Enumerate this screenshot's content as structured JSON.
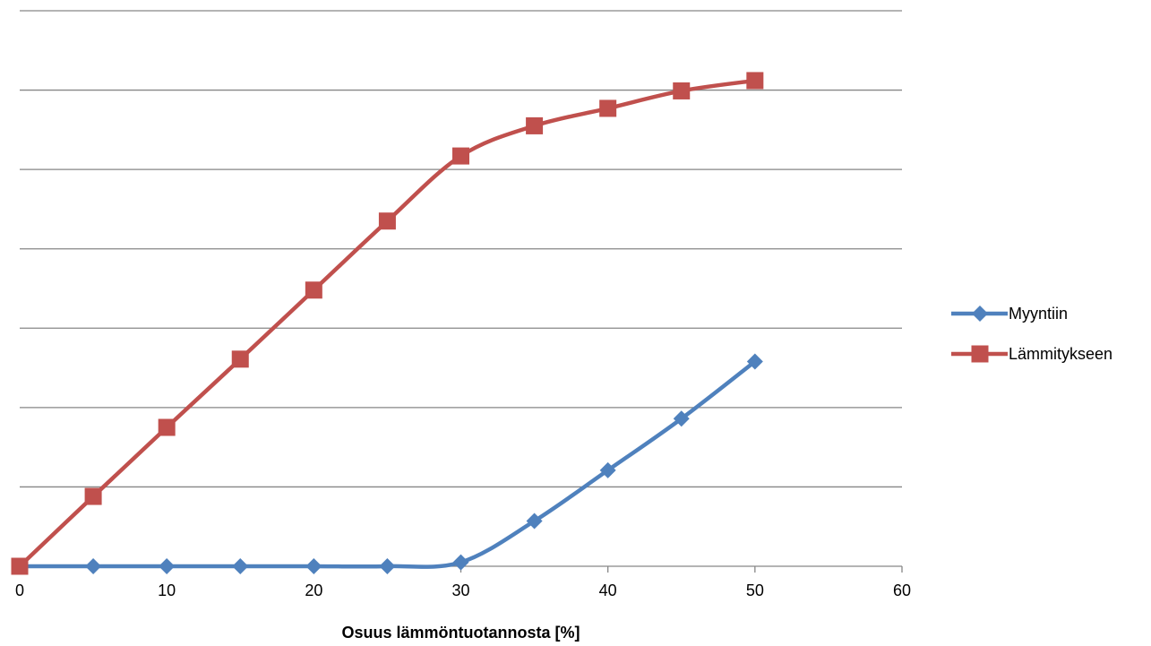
{
  "chart_data": {
    "type": "line",
    "title": "",
    "xlabel": "Osuus lämmöntuotannosta [%]",
    "ylabel": "",
    "xlim": [
      0,
      60
    ],
    "ylim": [
      0,
      7
    ],
    "x_ticks": [
      "0",
      "10",
      "20",
      "30",
      "40",
      "50",
      "60"
    ],
    "y_gridlines": 7,
    "grid": true,
    "legend_position": "right",
    "x": [
      0,
      5,
      10,
      15,
      20,
      25,
      30,
      35,
      40,
      45,
      50
    ],
    "series": [
      {
        "name": "Myyntiin",
        "color": "#4F81BD",
        "marker": "diamond",
        "values": [
          0,
          0,
          0,
          0,
          0,
          0,
          0.05,
          0.57,
          1.21,
          1.86,
          2.58
        ]
      },
      {
        "name": "Lämmitykseen",
        "color": "#C0504D",
        "marker": "square",
        "values": [
          0,
          0.88,
          1.75,
          2.61,
          3.48,
          4.35,
          5.17,
          5.55,
          5.77,
          5.99,
          6.12
        ]
      }
    ]
  }
}
